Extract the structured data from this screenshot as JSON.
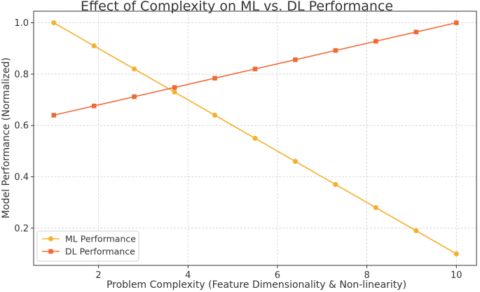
{
  "chart_data": {
    "type": "line",
    "title": "Effect of Complexity on ML vs. DL Performance",
    "xlabel": "Problem Complexity (Feature Dimensionality & Non-linearity)",
    "ylabel": "Model Performance (Normalized)",
    "xlim": [
      0.55,
      10.45
    ],
    "ylim": [
      0.055,
      1.045
    ],
    "xticks": [
      2,
      4,
      6,
      8,
      10
    ],
    "yticks": [
      0.2,
      0.4,
      0.6,
      0.8,
      1.0
    ],
    "grid": true,
    "legend_position": "bottom-left",
    "x": [
      1.0,
      1.9,
      2.8,
      3.7,
      4.6,
      5.5,
      6.4,
      7.3,
      8.2,
      9.1,
      10.0
    ],
    "series": [
      {
        "name": "ML Performance",
        "color": "#F5B12E",
        "marker": "circle",
        "values": [
          1.0,
          0.91,
          0.82,
          0.73,
          0.64,
          0.55,
          0.46,
          0.37,
          0.28,
          0.19,
          0.1
        ]
      },
      {
        "name": "DL Performance",
        "color": "#EE6A34",
        "marker": "square",
        "values": [
          0.64,
          0.676,
          0.712,
          0.748,
          0.784,
          0.82,
          0.856,
          0.892,
          0.928,
          0.964,
          1.0
        ]
      }
    ]
  }
}
